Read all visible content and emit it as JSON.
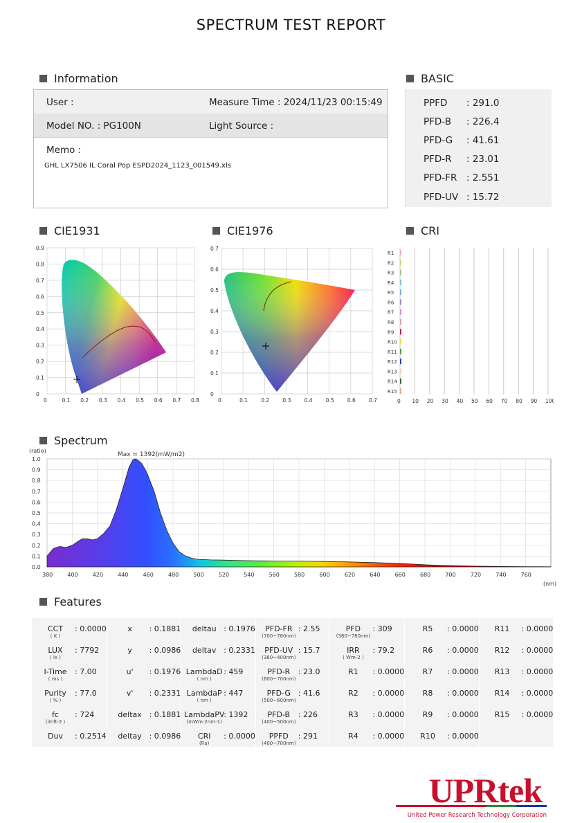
{
  "title": "SPECTRUM TEST REPORT",
  "sections": {
    "information": "Information",
    "basic": "BASIC",
    "cie1931": "CIE1931",
    "cie1976": "CIE1976",
    "cri": "CRI",
    "spectrum": "Spectrum",
    "features": "Features"
  },
  "information": {
    "user_label": "User :",
    "measure_time": "Measure Time : 2024/11/23 00:15:49",
    "model_no": "Model NO. : PG100N",
    "light_source": "Light Source :",
    "memo_label": "Memo :",
    "memo_value": "GHL LX7506 IL Coral Pop ESPD2024_1123_001549.xls"
  },
  "basic": [
    {
      "label": "PPFD",
      "value": ": 291.0"
    },
    {
      "label": "PFD-B",
      "value": ": 226.4"
    },
    {
      "label": "PFD-G",
      "value": ": 41.61"
    },
    {
      "label": "PFD-R",
      "value": ": 23.01"
    },
    {
      "label": "PFD-FR",
      "value": ": 2.551"
    },
    {
      "label": "PFD-UV",
      "value": ": 15.72"
    }
  ],
  "cie1931": {
    "y_ticks": [
      "0.9",
      "0.8",
      "0.7",
      "0.6",
      "0.5",
      "0.4",
      "0.3",
      "0.2",
      "0.1",
      "0"
    ],
    "x_ticks": [
      "0",
      "0.1",
      "0.2",
      "0.3",
      "0.4",
      "0.5",
      "0.6",
      "0.7",
      "0.8"
    ],
    "point": {
      "x": 0.1881,
      "y": 0.0986
    }
  },
  "cie1976": {
    "y_ticks": [
      "0.7",
      "0.6",
      "0.5",
      "0.4",
      "0.3",
      "0.2",
      "0.1",
      "0"
    ],
    "x_ticks": [
      "0",
      "0.1",
      "0.2",
      "0.3",
      "0.4",
      "0.5",
      "0.6",
      "0.7"
    ],
    "point": {
      "u": 0.1976,
      "v": 0.2331
    }
  },
  "cri": {
    "labels": [
      "R1",
      "R2",
      "R3",
      "R4",
      "R5",
      "R6",
      "R7",
      "R8",
      "R9",
      "R10",
      "R11",
      "R12",
      "R13",
      "R14",
      "R15"
    ],
    "x_ticks": [
      "0",
      "10",
      "20",
      "30",
      "40",
      "50",
      "60",
      "70",
      "80",
      "90",
      "100"
    ],
    "values": [
      0,
      0,
      0,
      0,
      0,
      0,
      0,
      0,
      0,
      0,
      0,
      0,
      0,
      0,
      0
    ],
    "bar_colors": [
      "#e8b4b4",
      "#d8d27a",
      "#a6c87a",
      "#7ac8c0",
      "#7aaed8",
      "#a08ad8",
      "#d88ad0",
      "#d0a0b0",
      "#d01030",
      "#e8e040",
      "#40a040",
      "#2040c0",
      "#f0d0c0",
      "#406040",
      "#e0b090"
    ]
  },
  "spectrum": {
    "ylabel": "(ratio)",
    "xlabel": "(nm)",
    "max_label": "Max = 1392(mW/m2)",
    "y_ticks": [
      "1.0",
      "0.9",
      "0.8",
      "0.7",
      "0.6",
      "0.5",
      "0.4",
      "0.3",
      "0.2",
      "0.1",
      "0.0"
    ],
    "x_ticks": [
      "380",
      "400",
      "420",
      "440",
      "460",
      "480",
      "500",
      "520",
      "540",
      "560",
      "580",
      "600",
      "620",
      "640",
      "660",
      "680",
      "700",
      "720",
      "740",
      "760"
    ]
  },
  "chart_data": {
    "type": "area",
    "title": "",
    "xlabel": "(nm)",
    "ylabel": "(ratio)",
    "xlim": [
      380,
      780
    ],
    "ylim": [
      0,
      1.0
    ],
    "x": [
      380,
      385,
      390,
      395,
      400,
      405,
      408,
      412,
      416,
      420,
      425,
      430,
      435,
      440,
      445,
      448,
      450,
      452,
      455,
      458,
      460,
      465,
      470,
      475,
      480,
      485,
      490,
      495,
      500,
      510,
      520,
      530,
      540,
      550,
      560,
      570,
      580,
      590,
      600,
      610,
      620,
      630,
      640,
      650,
      660,
      670,
      680,
      690,
      700,
      720,
      740,
      760,
      780
    ],
    "series": [
      {
        "values": [
          0.1,
          0.17,
          0.19,
          0.18,
          0.2,
          0.24,
          0.26,
          0.26,
          0.25,
          0.26,
          0.31,
          0.38,
          0.53,
          0.72,
          0.92,
          0.99,
          1.0,
          0.99,
          0.96,
          0.9,
          0.85,
          0.7,
          0.5,
          0.34,
          0.22,
          0.14,
          0.1,
          0.08,
          0.07,
          0.065,
          0.063,
          0.06,
          0.058,
          0.056,
          0.055,
          0.054,
          0.053,
          0.052,
          0.05,
          0.048,
          0.046,
          0.043,
          0.04,
          0.036,
          0.032,
          0.026,
          0.02,
          0.015,
          0.012,
          0.007,
          0.004,
          0.002,
          0.001
        ]
      }
    ]
  },
  "features": {
    "cols": [
      [
        {
          "label": "CCT",
          "sub": "( K )",
          "value": ": 0.0000"
        },
        {
          "label": "LUX",
          "sub": "( lx )",
          "value": ": 7792"
        },
        {
          "label": "I-Time",
          "sub": "( ms )",
          "value": ": 7.00"
        },
        {
          "label": "Purity",
          "sub": "( % )",
          "value": ": 77.0"
        },
        {
          "label": "fc",
          "sub": "(lmft-2 )",
          "value": ": 724"
        },
        {
          "label": "Duv",
          "sub": "",
          "value": ": 0.2514"
        }
      ],
      [
        {
          "label": "x",
          "sub": "",
          "value": ": 0.1881"
        },
        {
          "label": "y",
          "sub": "",
          "value": ": 0.0986"
        },
        {
          "label": "u'",
          "sub": "",
          "value": ": 0.1976"
        },
        {
          "label": "v'",
          "sub": "",
          "value": ": 0.2331"
        },
        {
          "label": "deltax",
          "sub": "",
          "value": ": 0.1881"
        },
        {
          "label": "deltay",
          "sub": "",
          "value": ": 0.0986"
        }
      ],
      [
        {
          "label": "deltau",
          "sub": "",
          "value": ": 0.1976"
        },
        {
          "label": "deltav",
          "sub": "",
          "value": ": 0.2331"
        },
        {
          "label": "LambdaD",
          "sub": "( nm )",
          "value": ": 459"
        },
        {
          "label": "LambdaP",
          "sub": "( nm )",
          "value": ": 447"
        },
        {
          "label": "LambdaPV",
          "sub": "(mWm-2nm-1)",
          "value": ": 1392"
        },
        {
          "label": "CRI",
          "sub": "(Ra)",
          "value": ": 0.0000"
        }
      ],
      [
        {
          "label": "PFD-FR",
          "sub": "(700~780nm)",
          "value": ": 2.55"
        },
        {
          "label": "PFD-UV",
          "sub": "(380~400nm)",
          "value": ": 15.7"
        },
        {
          "label": "PFD-R",
          "sub": "(600~700nm)",
          "value": ": 23.0"
        },
        {
          "label": "PFD-G",
          "sub": "(500~600nm)",
          "value": ": 41.6"
        },
        {
          "label": "PFD-B",
          "sub": "(400~500nm)",
          "value": ": 226"
        },
        {
          "label": "PPFD",
          "sub": "(400~700nm)",
          "value": ": 291"
        }
      ],
      [
        {
          "label": "PFD",
          "sub": "(380~780nm)",
          "value": ": 309"
        },
        {
          "label": "IRR",
          "sub": "( Wm-2 )",
          "value": ": 79.2"
        },
        {
          "label": "R1",
          "sub": "",
          "value": ": 0.0000"
        },
        {
          "label": "R2",
          "sub": "",
          "value": ": 0.0000"
        },
        {
          "label": "R3",
          "sub": "",
          "value": ": 0.0000"
        },
        {
          "label": "R4",
          "sub": "",
          "value": ": 0.0000"
        }
      ],
      [
        {
          "label": "R5",
          "sub": "",
          "value": ": 0.0000"
        },
        {
          "label": "R6",
          "sub": "",
          "value": ": 0.0000"
        },
        {
          "label": "R7",
          "sub": "",
          "value": ": 0.0000"
        },
        {
          "label": "R8",
          "sub": "",
          "value": ": 0.0000"
        },
        {
          "label": "R9",
          "sub": "",
          "value": ": 0.0000"
        },
        {
          "label": "R10",
          "sub": "",
          "value": ": 0.0000"
        }
      ],
      [
        {
          "label": "R11",
          "sub": "",
          "value": ": 0.0000"
        },
        {
          "label": "R12",
          "sub": "",
          "value": ": 0.0000"
        },
        {
          "label": "R13",
          "sub": "",
          "value": ": 0.0000"
        },
        {
          "label": "R14",
          "sub": "",
          "value": ": 0.0000"
        },
        {
          "label": "R15",
          "sub": "",
          "value": ": 0.0000"
        },
        {
          "label": "",
          "sub": "",
          "value": ""
        }
      ]
    ]
  },
  "logo": {
    "text": "UPRtek",
    "tagline": "United Power Research Technology Corporation"
  }
}
